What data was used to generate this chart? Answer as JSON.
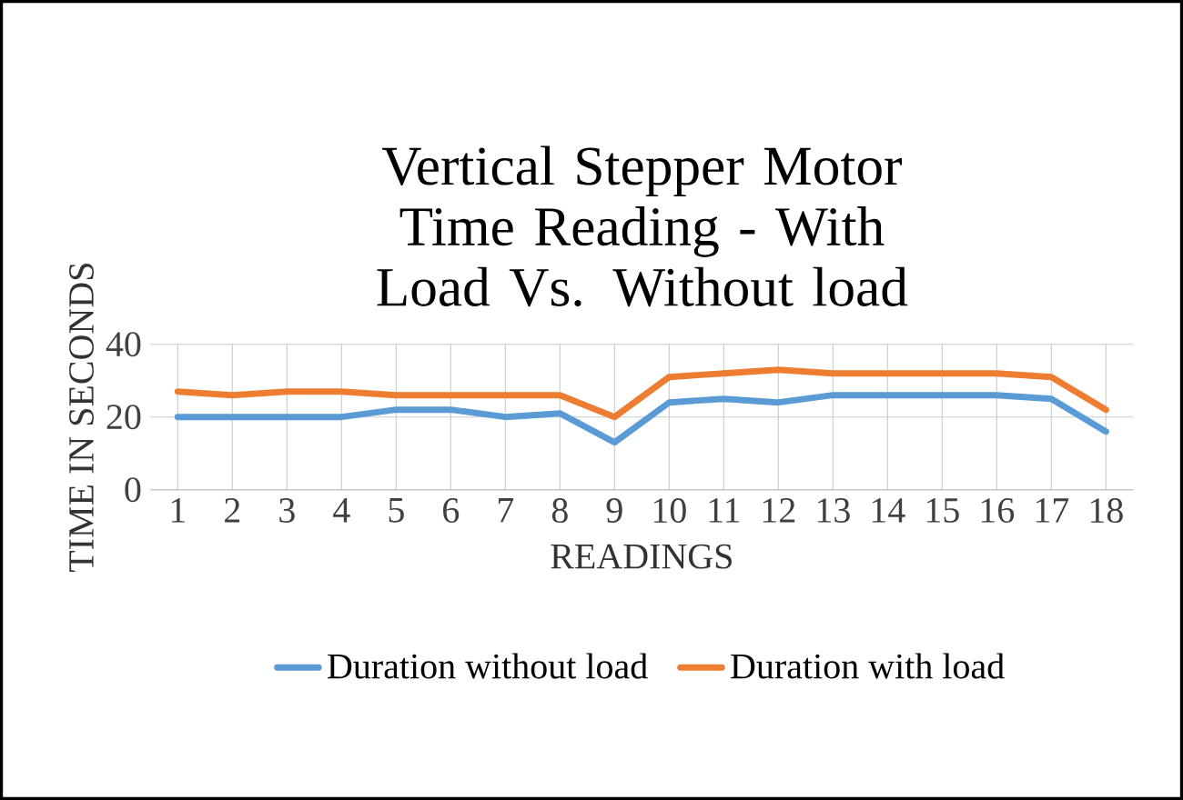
{
  "chart_data": {
    "type": "line",
    "title": "Vertical Stepper Motor Time Reading - With Load Vs. Without load",
    "xlabel": "READINGS",
    "ylabel": "TIME IN SECONDS",
    "categories": [
      "1",
      "2",
      "3",
      "4",
      "5",
      "6",
      "7",
      "8",
      "9",
      "10",
      "11",
      "12",
      "13",
      "14",
      "15",
      "16",
      "17",
      "18"
    ],
    "series": [
      {
        "name": "Duration without load",
        "color": "#5b9bd5",
        "values": [
          20,
          20,
          20,
          20,
          22,
          22,
          20,
          21,
          13,
          24,
          25,
          24,
          26,
          26,
          26,
          26,
          25,
          16
        ]
      },
      {
        "name": "Duration with load",
        "color": "#ed7d31",
        "values": [
          27,
          26,
          27,
          27,
          26,
          26,
          26,
          26,
          20,
          31,
          32,
          33,
          32,
          32,
          32,
          32,
          31,
          22
        ]
      }
    ],
    "ylim": [
      0,
      40
    ],
    "yticks": [
      0,
      20,
      40
    ],
    "grid": true,
    "legend": "bottom",
    "marker": "none",
    "line_style": "solid"
  }
}
